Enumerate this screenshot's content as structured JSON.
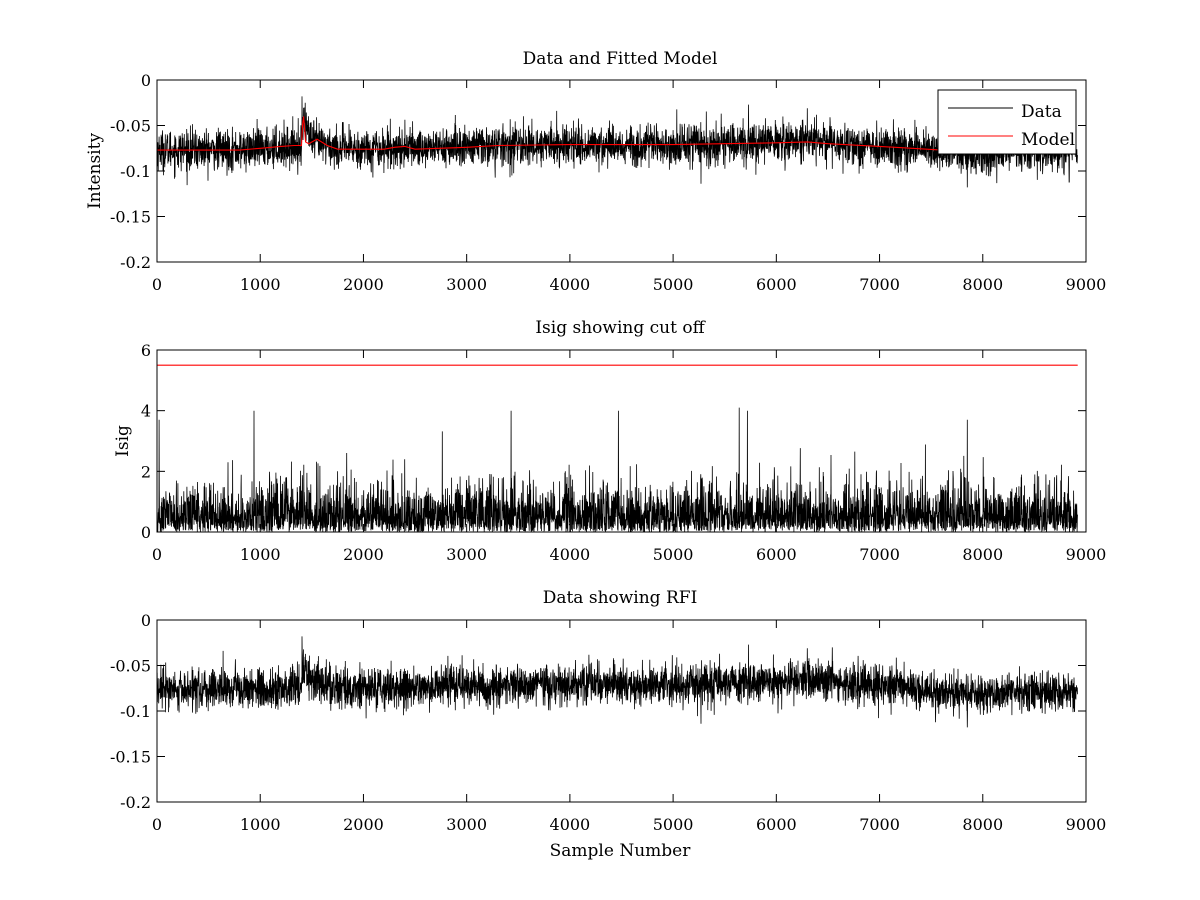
{
  "chart_data": [
    {
      "type": "line",
      "title": "Data and Fitted Model",
      "xlabel": "",
      "ylabel": "Intensity",
      "xlim": [
        0,
        9000
      ],
      "ylim": [
        -0.2,
        0
      ],
      "xticks": [
        0,
        1000,
        2000,
        3000,
        4000,
        5000,
        6000,
        7000,
        8000,
        9000
      ],
      "yticks": [
        -0.2,
        -0.15,
        -0.1,
        -0.05,
        0
      ],
      "ytick_labels": [
        "-0.2",
        "-0.15",
        "-0.1",
        "-0.05",
        "0"
      ],
      "legend": {
        "position": "top-right",
        "entries": [
          "Data",
          "Model"
        ]
      },
      "colors": {
        "Data": "#000000",
        "Model": "#ff0000"
      },
      "series": [
        {
          "name": "Data",
          "kind": "noisy",
          "sample_count": 8920,
          "baseline": {
            "x": [
              0,
              800,
              1300,
              1400,
              1420,
              1500,
              1800,
              3000,
              4000,
              5000,
              5700,
              6300,
              7000,
              7600,
              7850,
              8400,
              8920
            ],
            "y": [
              -0.077,
              -0.077,
              -0.073,
              -0.072,
              -0.04,
              -0.068,
              -0.076,
              -0.073,
              -0.071,
              -0.072,
              -0.069,
              -0.066,
              -0.073,
              -0.078,
              -0.082,
              -0.078,
              -0.078
            ]
          },
          "noise_amplitude": 0.011,
          "spikes": [
            {
              "x": 1405,
              "y": -0.018
            },
            {
              "x": 5730,
              "y": -0.027
            },
            {
              "x": 6300,
              "y": -0.031
            },
            {
              "x": 7850,
              "y": -0.118
            },
            {
              "x": 5270,
              "y": -0.114
            }
          ]
        },
        {
          "name": "Model",
          "x": [
            0,
            800,
            1000,
            1200,
            1330,
            1400,
            1410,
            1420,
            1440,
            1470,
            1550,
            1650,
            1750,
            2000,
            2200,
            2300,
            2400,
            2500,
            3000,
            3300,
            4000,
            5000,
            5500,
            6000,
            6300,
            6500,
            7000,
            7600
          ],
          "y": [
            -0.077,
            -0.077,
            -0.075,
            -0.073,
            -0.072,
            -0.072,
            -0.05,
            -0.04,
            -0.068,
            -0.07,
            -0.065,
            -0.072,
            -0.076,
            -0.076,
            -0.076,
            -0.074,
            -0.073,
            -0.076,
            -0.074,
            -0.072,
            -0.071,
            -0.071,
            -0.07,
            -0.069,
            -0.068,
            -0.07,
            -0.073,
            -0.077
          ]
        }
      ]
    },
    {
      "type": "line",
      "title": "Isig showing cut off",
      "xlabel": "",
      "ylabel": "Isig",
      "xlim": [
        0,
        9000
      ],
      "ylim": [
        0,
        6
      ],
      "xticks": [
        0,
        1000,
        2000,
        3000,
        4000,
        5000,
        6000,
        7000,
        8000,
        9000
      ],
      "yticks": [
        0,
        2,
        4,
        6
      ],
      "ytick_labels": [
        "0",
        "2",
        "4",
        "6"
      ],
      "colors": {
        "Isig": "#000000",
        "Cutoff": "#ff0000"
      },
      "series": [
        {
          "name": "",
          "kind": "abs-noise",
          "sample_count": 8920,
          "scale": 0.75,
          "spikes": [
            {
              "x": 940,
              "y": 4.0
            },
            {
              "x": 3430,
              "y": 4.0
            },
            {
              "x": 4470,
              "y": 4.0
            },
            {
              "x": 5640,
              "y": 4.1
            },
            {
              "x": 5720,
              "y": 4.0
            },
            {
              "x": 7850,
              "y": 3.7
            },
            {
              "x": 20,
              "y": 3.7
            }
          ]
        },
        {
          "name": "",
          "kind": "hline",
          "x": [
            0,
            8920
          ],
          "y": [
            5.5,
            5.5
          ]
        }
      ]
    },
    {
      "type": "line",
      "title": "Data showing RFI",
      "xlabel": "Sample Number",
      "ylabel": "",
      "xlim": [
        0,
        9000
      ],
      "ylim": [
        -0.2,
        0
      ],
      "xticks": [
        0,
        1000,
        2000,
        3000,
        4000,
        5000,
        6000,
        7000,
        8000,
        9000
      ],
      "yticks": [
        -0.2,
        -0.15,
        -0.1,
        -0.05,
        0
      ],
      "ytick_labels": [
        "-0.2",
        "-0.15",
        "-0.1",
        "-0.05",
        "0"
      ],
      "colors": {
        "Data": "#000000"
      },
      "series": [
        {
          "name": "",
          "kind": "noisy",
          "sample_count": 8920,
          "baseline": {
            "x": [
              0,
              800,
              1300,
              1400,
              1420,
              1500,
              1800,
              3000,
              4000,
              5000,
              5700,
              6300,
              7000,
              7600,
              7850,
              8400,
              8920
            ],
            "y": [
              -0.077,
              -0.077,
              -0.073,
              -0.072,
              -0.05,
              -0.068,
              -0.076,
              -0.073,
              -0.071,
              -0.072,
              -0.069,
              -0.066,
              -0.073,
              -0.078,
              -0.082,
              -0.078,
              -0.078
            ]
          },
          "noise_amplitude": 0.011,
          "spikes": [
            {
              "x": 1405,
              "y": -0.018
            },
            {
              "x": 5730,
              "y": -0.027
            },
            {
              "x": 6300,
              "y": -0.031
            },
            {
              "x": 7850,
              "y": -0.118
            },
            {
              "x": 5270,
              "y": -0.114
            }
          ]
        }
      ]
    }
  ]
}
